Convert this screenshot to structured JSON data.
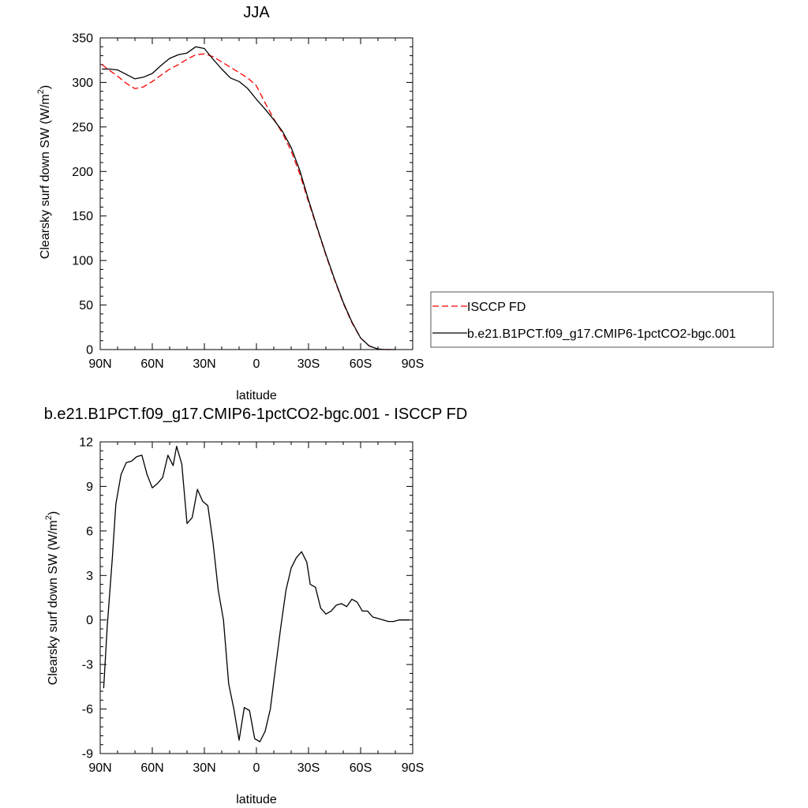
{
  "chart_data": [
    {
      "type": "line",
      "title": "JJA",
      "xlabel": "latitude",
      "ylabel": "Clearsky surf down SW (W/m",
      "ylabel_sup": "2",
      "ylabel_close": ")",
      "xlim": [
        90,
        -90
      ],
      "ylim": [
        0,
        350
      ],
      "x_ticks": [
        90,
        60,
        30,
        0,
        -30,
        -60,
        -90
      ],
      "x_tick_labels": [
        "90N",
        "60N",
        "30N",
        "0",
        "30S",
        "60S",
        "90S"
      ],
      "y_ticks": [
        0,
        50,
        100,
        150,
        200,
        250,
        300,
        350
      ],
      "y_tick_labels": [
        "0",
        "50",
        "100",
        "150",
        "200",
        "250",
        "300",
        "350"
      ],
      "legend": {
        "placement": "right",
        "entries": [
          "ISCCP FD",
          "b.e21.B1PCT.f09_g17.CMIP6-1pctCO2-bgc.001"
        ]
      },
      "series": [
        {
          "name": "ISCCP FD",
          "color": "#ff0000",
          "dash": "dashed",
          "x": [
            89,
            85,
            80,
            75,
            70,
            65,
            60,
            55,
            50,
            45,
            40,
            35,
            30,
            25,
            20,
            15,
            10,
            5,
            0,
            -5,
            -10,
            -15,
            -20,
            -25,
            -30,
            -35,
            -40,
            -45,
            -50,
            -55,
            -60,
            -65,
            -70,
            -75,
            -80
          ],
          "y": [
            320,
            314,
            307,
            299,
            293,
            295,
            301,
            308,
            315,
            320,
            326,
            331,
            332,
            329,
            323,
            317,
            311,
            305,
            296,
            277,
            259,
            243,
            223,
            197,
            166,
            136,
            106,
            78,
            52,
            30,
            13,
            4,
            0.5,
            0,
            0
          ]
        },
        {
          "name": "b.e21.B1PCT.f09_g17.CMIP6-1pctCO2-bgc.001",
          "color": "#000000",
          "dash": "solid",
          "x": [
            89,
            85,
            80,
            75,
            70,
            65,
            60,
            55,
            50,
            45,
            40,
            35,
            30,
            25,
            20,
            15,
            10,
            5,
            0,
            -5,
            -10,
            -15,
            -20,
            -25,
            -30,
            -35,
            -40,
            -45,
            -50,
            -55,
            -60,
            -65,
            -70,
            -75,
            -80
          ],
          "y": [
            315,
            315,
            314,
            309,
            304,
            306,
            310,
            319,
            327,
            331,
            333,
            340,
            338,
            326,
            315,
            305,
            301,
            293,
            281,
            270,
            258,
            245,
            227,
            201,
            168,
            137,
            107,
            79,
            53,
            31,
            13,
            4,
            0.5,
            0,
            0
          ]
        }
      ]
    },
    {
      "type": "line",
      "title": "b.e21.B1PCT.f09_g17.CMIP6-1pctCO2-bgc.001 - ISCCP FD",
      "xlabel": "latitude",
      "ylabel": "Clearsky surf down SW (W/m",
      "ylabel_sup": "2",
      "ylabel_close": ")",
      "xlim": [
        90,
        -90
      ],
      "ylim": [
        -9,
        12
      ],
      "x_ticks": [
        90,
        60,
        30,
        0,
        -30,
        -60,
        -90
      ],
      "x_tick_labels": [
        "90N",
        "60N",
        "30N",
        "0",
        "30S",
        "60S",
        "90S"
      ],
      "y_ticks": [
        -9,
        -6,
        -3,
        0,
        3,
        6,
        9,
        12
      ],
      "y_tick_labels": [
        "-9",
        "-6",
        "-3",
        "0",
        "3",
        "6",
        "9",
        "12"
      ],
      "series": [
        {
          "color": "#000000",
          "dash": "solid",
          "x": [
            88,
            86,
            83,
            81,
            78,
            75,
            72,
            69,
            66,
            63,
            60,
            57,
            54,
            51,
            48,
            46,
            43,
            40,
            37,
            34,
            31,
            28,
            25,
            22,
            19,
            16,
            13,
            10,
            7,
            4,
            1,
            -2,
            -5,
            -8,
            -11,
            -14,
            -17,
            -20,
            -23,
            -26,
            -29,
            -31,
            -34,
            -37,
            -40,
            -43,
            -46,
            -49,
            -52,
            -55,
            -58,
            -61,
            -64,
            -67,
            -70,
            -73,
            -76,
            -79,
            -82,
            -88
          ],
          "y": [
            -4.6,
            -0.5,
            4.2,
            7.8,
            9.8,
            10.6,
            10.7,
            11.0,
            11.1,
            9.8,
            8.9,
            9.2,
            9.6,
            11.1,
            10.4,
            11.7,
            10.5,
            6.5,
            6.9,
            8.8,
            8.0,
            7.7,
            5.2,
            2.0,
            0,
            -4.3,
            -6.0,
            -8.1,
            -5.9,
            -6.1,
            -8.0,
            -8.2,
            -7.5,
            -6.0,
            -3.2,
            -0.5,
            2.0,
            3.5,
            4.2,
            4.6,
            3.9,
            2.4,
            2.2,
            0.8,
            0.4,
            0.6,
            1.0,
            1.1,
            0.9,
            1.4,
            1.2,
            0.6,
            0.6,
            0.2,
            0.1,
            0.0,
            -0.1,
            -0.1,
            0,
            0
          ]
        }
      ]
    }
  ]
}
